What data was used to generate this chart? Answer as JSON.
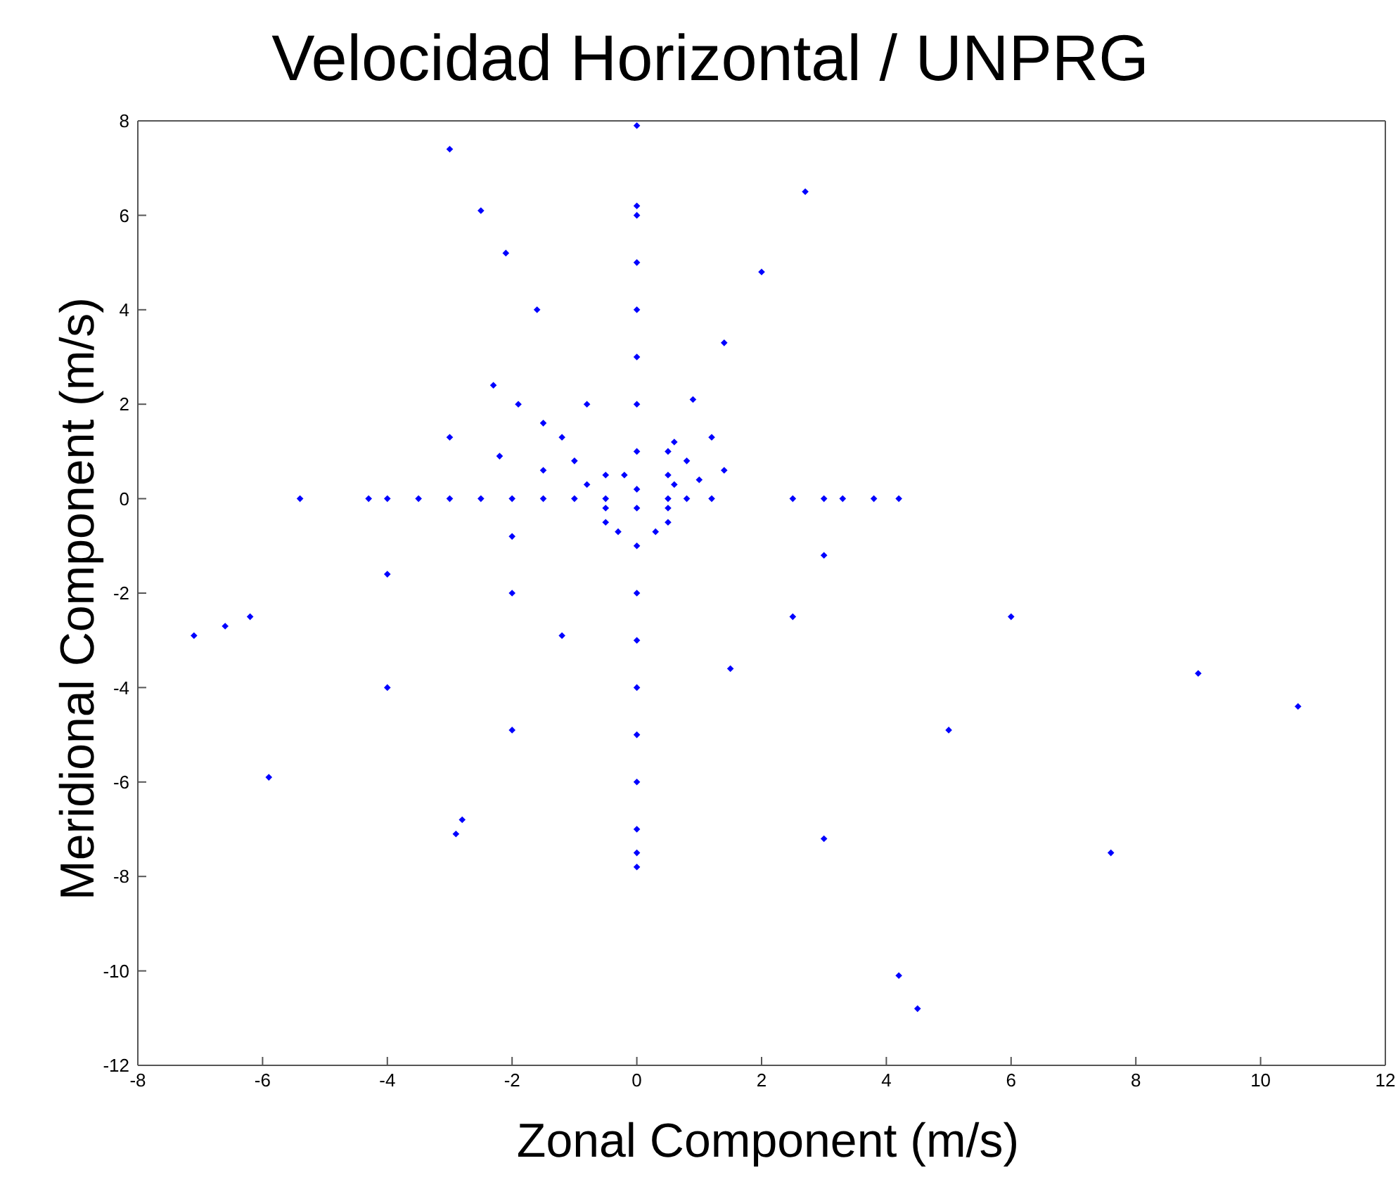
{
  "chart_data": {
    "type": "scatter",
    "title": "Velocidad Horizontal / UNPRG",
    "xlabel": "Zonal Component (m/s)",
    "ylabel": "Meridional Component (m/s)",
    "xlim": [
      -8,
      12
    ],
    "xticks": [
      -8,
      -6,
      -4,
      -2,
      0,
      2,
      4,
      6,
      8,
      10,
      12
    ],
    "ylim": [
      -12,
      8
    ],
    "yticks": [
      -12,
      -10,
      -8,
      -6,
      -4,
      -2,
      0,
      2,
      4,
      6,
      8
    ],
    "grid": false,
    "legend": false,
    "marker": "diamond",
    "series": [
      {
        "color": "#0000ff",
        "x": [
          0,
          0,
          0,
          0,
          0,
          0,
          0,
          0,
          0,
          0,
          0,
          0,
          0,
          0,
          0,
          0,
          0,
          0,
          0,
          -0.2,
          -0.8,
          -1.6,
          -2.1,
          -2.5,
          -3.0,
          0.9,
          1.4,
          2.0,
          2.7,
          -2.3,
          -1.9,
          -1.5,
          -1.2,
          -3.0,
          -2.2,
          -1.5,
          -0.8,
          -1.0,
          -0.5,
          0.5,
          0.8,
          1.2,
          0.5,
          0.6,
          1.4,
          1.0,
          0.6,
          -5.4,
          -4.3,
          -4.0,
          -3.5,
          -3.0,
          -2.5,
          -2.0,
          -1.5,
          -1.0,
          -0.5,
          0.5,
          0.8,
          1.2,
          2.5,
          3.0,
          3.3,
          3.8,
          4.2,
          -0.5,
          -2,
          -4,
          -6.2,
          -6.6,
          -7.1,
          -0.5,
          -2,
          -4,
          -5.9,
          -0.3,
          -1.2,
          -2.0,
          -2.8,
          -2.9,
          0.3,
          1.5,
          3,
          4.2,
          4.5,
          0.5,
          2.5,
          5,
          7.6,
          0.5,
          3,
          6,
          9,
          10.6
        ],
        "values": [
          0.2,
          1,
          2,
          3,
          4,
          5,
          6,
          6.2,
          7.9,
          -0.2,
          -1,
          -2,
          -3,
          -4,
          -5,
          -6,
          -7,
          -7.5,
          -7.8,
          0.5,
          2,
          4,
          5.2,
          6.1,
          7.4,
          2.1,
          3.3,
          4.8,
          6.5,
          2.4,
          2.0,
          1.6,
          1.3,
          1.3,
          0.9,
          0.6,
          0.3,
          0.8,
          0.5,
          0.5,
          0.8,
          1.3,
          1.0,
          1.2,
          0.6,
          0.4,
          0.3,
          0,
          0,
          0,
          0,
          0,
          0,
          0,
          0,
          0,
          0,
          0,
          0,
          0,
          0,
          0,
          0,
          0,
          0,
          -0.2,
          -0.8,
          -1.6,
          -2.5,
          -2.7,
          -2.9,
          -0.5,
          -2,
          -4,
          -5.9,
          -0.7,
          -2.9,
          -4.9,
          -6.8,
          -7.1,
          -0.7,
          -3.6,
          -7.2,
          -10.1,
          -10.8,
          -0.5,
          -2.5,
          -4.9,
          -7.5,
          -0.2,
          -1.2,
          -2.5,
          -3.7,
          -4.4
        ]
      }
    ]
  }
}
